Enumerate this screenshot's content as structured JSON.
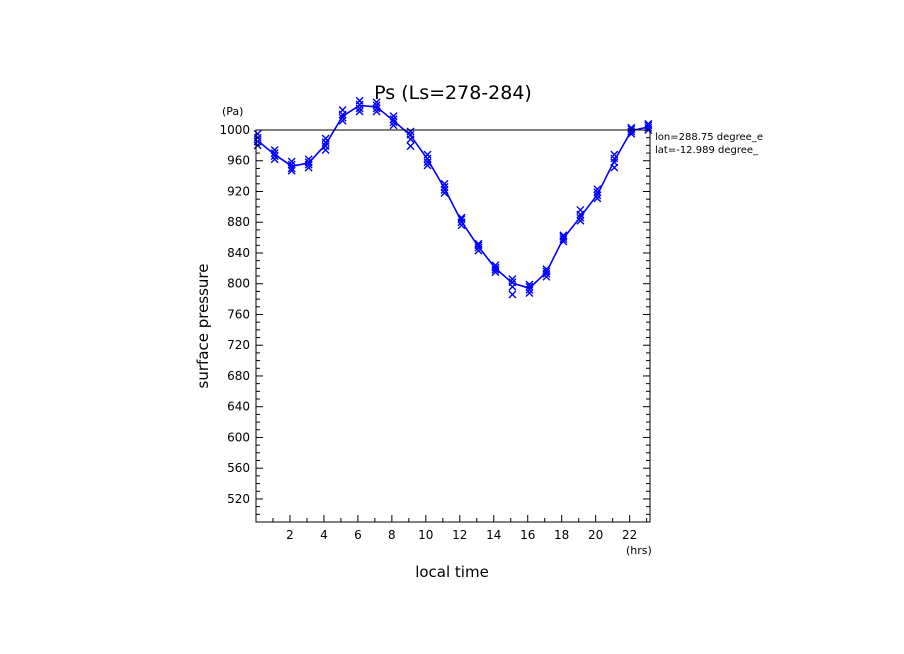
{
  "chart_data": {
    "type": "line",
    "title": "Ps (Ls=278-284)",
    "xlabel": "local time",
    "ylabel": "surface pressure",
    "x_unit": "(hrs)",
    "y_unit": "(Pa)",
    "xlim": [
      0,
      23.2
    ],
    "ylim": [
      490,
      1000
    ],
    "x_ticks": [
      2,
      4,
      6,
      8,
      10,
      12,
      14,
      16,
      18,
      20,
      22
    ],
    "y_ticks": [
      520,
      560,
      600,
      640,
      680,
      720,
      760,
      800,
      840,
      880,
      920,
      960,
      1000
    ],
    "annotations": [
      "lon=288.75 degree_e",
      "lat=-12.989 degree_"
    ],
    "colors": {
      "series": "#0000ff",
      "axes": "#000000"
    },
    "grid": false,
    "series": [
      {
        "x": [
          0.1,
          1.1,
          2.1,
          3.1,
          4.1,
          5.1,
          6.1,
          7.1,
          8.1,
          9.1,
          10.1,
          11.1,
          12.1,
          13.1,
          14.1,
          15.1,
          16.1,
          17.1,
          18.1,
          19.1,
          20.1,
          21.1,
          22.1,
          23.1
        ],
        "y": [
          986,
          968,
          953,
          957,
          981,
          1018,
          1032,
          1030,
          1012,
          993,
          962,
          924,
          881,
          848,
          820,
          801,
          794,
          815,
          859,
          887,
          916,
          960,
          999,
          1004
        ]
      }
    ],
    "scatter_points": [
      {
        "x": 0.1,
        "y": [
          980,
          985,
          990,
          995
        ]
      },
      {
        "x": 1.1,
        "y": [
          962,
          966,
          970,
          974
        ]
      },
      {
        "x": 2.1,
        "y": [
          947,
          950,
          955,
          959
        ]
      },
      {
        "x": 3.1,
        "y": [
          951,
          955,
          958,
          962
        ]
      },
      {
        "x": 4.1,
        "y": [
          974,
          979,
          984,
          989
        ]
      },
      {
        "x": 5.1,
        "y": [
          1012,
          1016,
          1020,
          1026
        ]
      },
      {
        "x": 6.1,
        "y": [
          1024,
          1028,
          1033,
          1038
        ]
      },
      {
        "x": 7.1,
        "y": [
          1024,
          1028,
          1032,
          1036
        ]
      },
      {
        "x": 8.1,
        "y": [
          1006,
          1010,
          1014,
          1018
        ]
      },
      {
        "x": 9.1,
        "y": [
          979,
          988,
          994,
          998
        ]
      },
      {
        "x": 10.1,
        "y": [
          954,
          958,
          963,
          968
        ]
      },
      {
        "x": 11.1,
        "y": [
          918,
          922,
          926,
          930
        ]
      },
      {
        "x": 12.1,
        "y": [
          876,
          880,
          884,
          886
        ]
      },
      {
        "x": 13.1,
        "y": [
          843,
          847,
          850,
          852
        ]
      },
      {
        "x": 14.1,
        "y": [
          815,
          818,
          821,
          824
        ]
      },
      {
        "x": 15.1,
        "y": [
          786,
          796,
          802,
          806
        ]
      },
      {
        "x": 16.1,
        "y": [
          788,
          792,
          796,
          799
        ]
      },
      {
        "x": 17.1,
        "y": [
          809,
          813,
          816,
          819
        ]
      },
      {
        "x": 18.1,
        "y": [
          855,
          858,
          861,
          863
        ]
      },
      {
        "x": 19.1,
        "y": [
          882,
          886,
          890,
          896
        ]
      },
      {
        "x": 20.1,
        "y": [
          911,
          915,
          919,
          923
        ]
      },
      {
        "x": 21.1,
        "y": [
          951,
          958,
          963,
          968
        ]
      },
      {
        "x": 22.1,
        "y": [
          995,
          998,
          1001,
          1003
        ]
      },
      {
        "x": 23.1,
        "y": [
          1000,
          1003,
          1006,
          1008
        ]
      }
    ]
  }
}
